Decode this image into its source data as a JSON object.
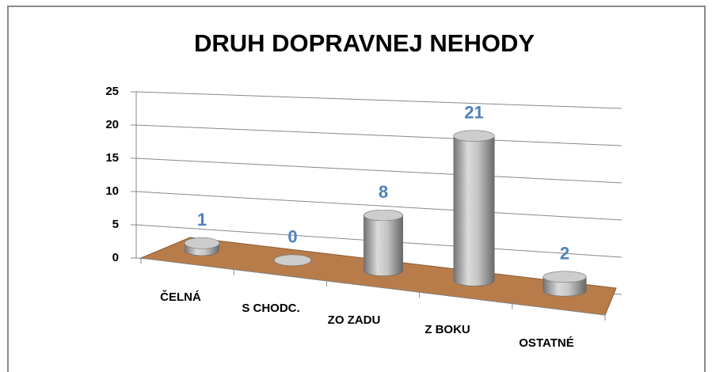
{
  "chart_data": {
    "type": "bar3d-cylinder",
    "title": "DRUH DOPRAVNEJ NEHODY",
    "categories": [
      "ČELNÁ",
      "S CHODC.",
      "ZO ZADU",
      "Z BOKU",
      "OSTATNÉ"
    ],
    "values": [
      1,
      0,
      8,
      21,
      2
    ],
    "ylim": [
      0,
      25
    ],
    "yticks": [
      0,
      5,
      10,
      15,
      20,
      25
    ],
    "grid": true,
    "color": "#b0b0b0",
    "floor_color": "#b87c4a",
    "label_color": "#4f81bd"
  }
}
